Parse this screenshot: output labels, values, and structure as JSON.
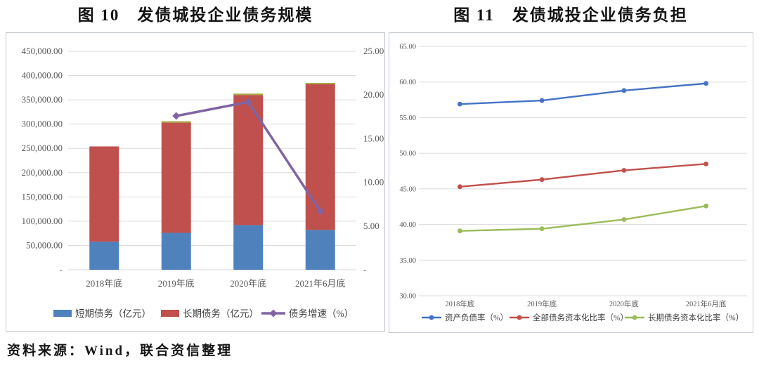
{
  "figures": [
    {
      "title": "图 10　发债城投企业债务规模"
    },
    {
      "title": "图 11　发债城投企业债务负担"
    }
  ],
  "source_note": "资料来源：Wind，联合资信整理",
  "colors": {
    "grid": "#dbdbdb",
    "axis_text": "#595959",
    "legend_text": "#3f3f3f",
    "panel_border": "#c3c8ce"
  },
  "chart_data": [
    {
      "type": "bar",
      "title": "图 10 发债城投企业债务规模",
      "categories": [
        "2018年底",
        "2019年底",
        "2020年底",
        "2021年6月底"
      ],
      "series": [
        {
          "name": "短期债务（亿元）",
          "kind": "bar",
          "color": "#4F81BD",
          "values": [
            58000,
            76000,
            92000,
            82000
          ]
        },
        {
          "name": "长期债务（亿元）",
          "kind": "bar",
          "color": "#C0504D",
          "values": [
            196000,
            227000,
            268000,
            300000
          ]
        },
        {
          "name": "债务增速（%）",
          "kind": "line",
          "axis": "right",
          "color": "#8064A2",
          "marker": "diamond",
          "values": [
            null,
            17.6,
            19.2,
            6.7
          ]
        }
      ],
      "left_axis": {
        "min": 0,
        "max": 450000,
        "step": 50000,
        "zero_label": "-"
      },
      "right_axis": {
        "min": 0,
        "max": 25,
        "step": 5,
        "zero_label": "-"
      },
      "bar_top_accent": {
        "color": "#a7a93f",
        "applies_to": [
          false,
          true,
          true,
          true
        ]
      },
      "grid": true,
      "legend_position": "bottom"
    },
    {
      "type": "line",
      "title": "图 11 发债城投企业债务负担",
      "categories": [
        "2018年底",
        "2019年底",
        "2020年底",
        "2021年6月底"
      ],
      "series": [
        {
          "name": "资产负债率（%）",
          "color": "#4472C4",
          "marker": "circle",
          "values": [
            56.9,
            57.4,
            58.8,
            59.8
          ]
        },
        {
          "name": "全部债务资本化比率（%）",
          "color": "#C0504D",
          "marker": "circle",
          "values": [
            45.3,
            46.3,
            47.6,
            48.5
          ]
        },
        {
          "name": "长期债务资本化比率（%）",
          "color": "#9BBB59",
          "marker": "circle",
          "values": [
            39.1,
            39.4,
            40.7,
            42.6
          ]
        }
      ],
      "y_axis": {
        "min": 30,
        "max": 65,
        "step": 5
      },
      "grid": true,
      "legend_position": "bottom"
    }
  ]
}
